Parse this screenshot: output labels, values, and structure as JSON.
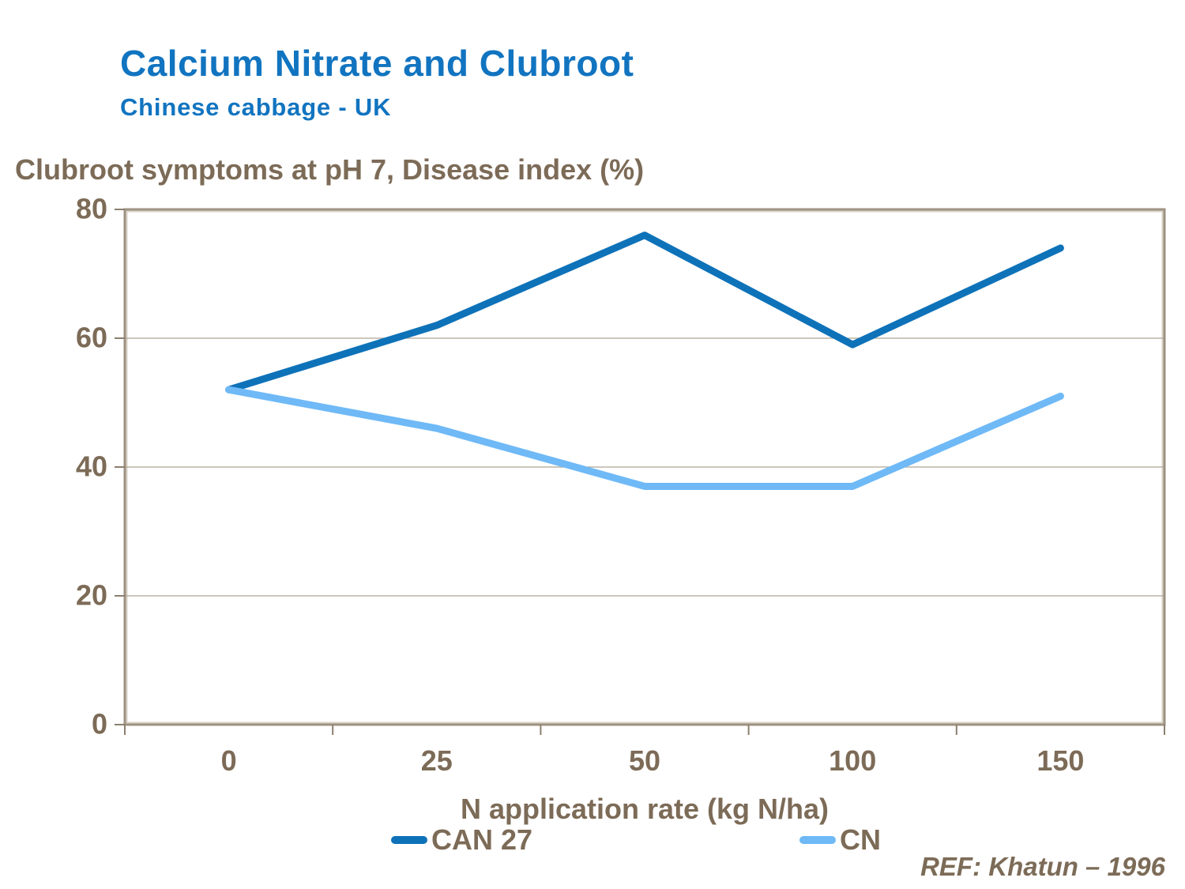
{
  "header": {
    "title": "Calcium Nitrate and Clubroot",
    "subtitle": "Chinese cabbage - UK"
  },
  "chart_data": {
    "type": "line",
    "title": "Clubroot symptoms at pH 7, Disease index (%)",
    "categories": [
      "0",
      "25",
      "50",
      "100",
      "150"
    ],
    "series": [
      {
        "name": "CAN 27",
        "color": "#0e72b9",
        "values": [
          52,
          62,
          76,
          59,
          74
        ]
      },
      {
        "name": "CN",
        "color": "#6fb9f7",
        "values": [
          52,
          46,
          37,
          37,
          51
        ]
      }
    ],
    "xlabel": "N application rate (kg N/ha)",
    "ylabel": "Disease index (%)",
    "ylim": [
      0,
      80
    ],
    "yticks": [
      0,
      20,
      40,
      60,
      80
    ],
    "grid": "horizontal",
    "legend_position": "bottom"
  },
  "footer": {
    "ref_label": "REF: Khatun – 1996"
  },
  "colors": {
    "title_blue": "#1174c0",
    "text_brown": "#7c6b57",
    "axis_frame": "#9d9181",
    "axis_frame_inner": "#d9d2c6",
    "gridline": "#ada595",
    "tick": "#8c7f6f",
    "plot_background": "#ffffff"
  }
}
